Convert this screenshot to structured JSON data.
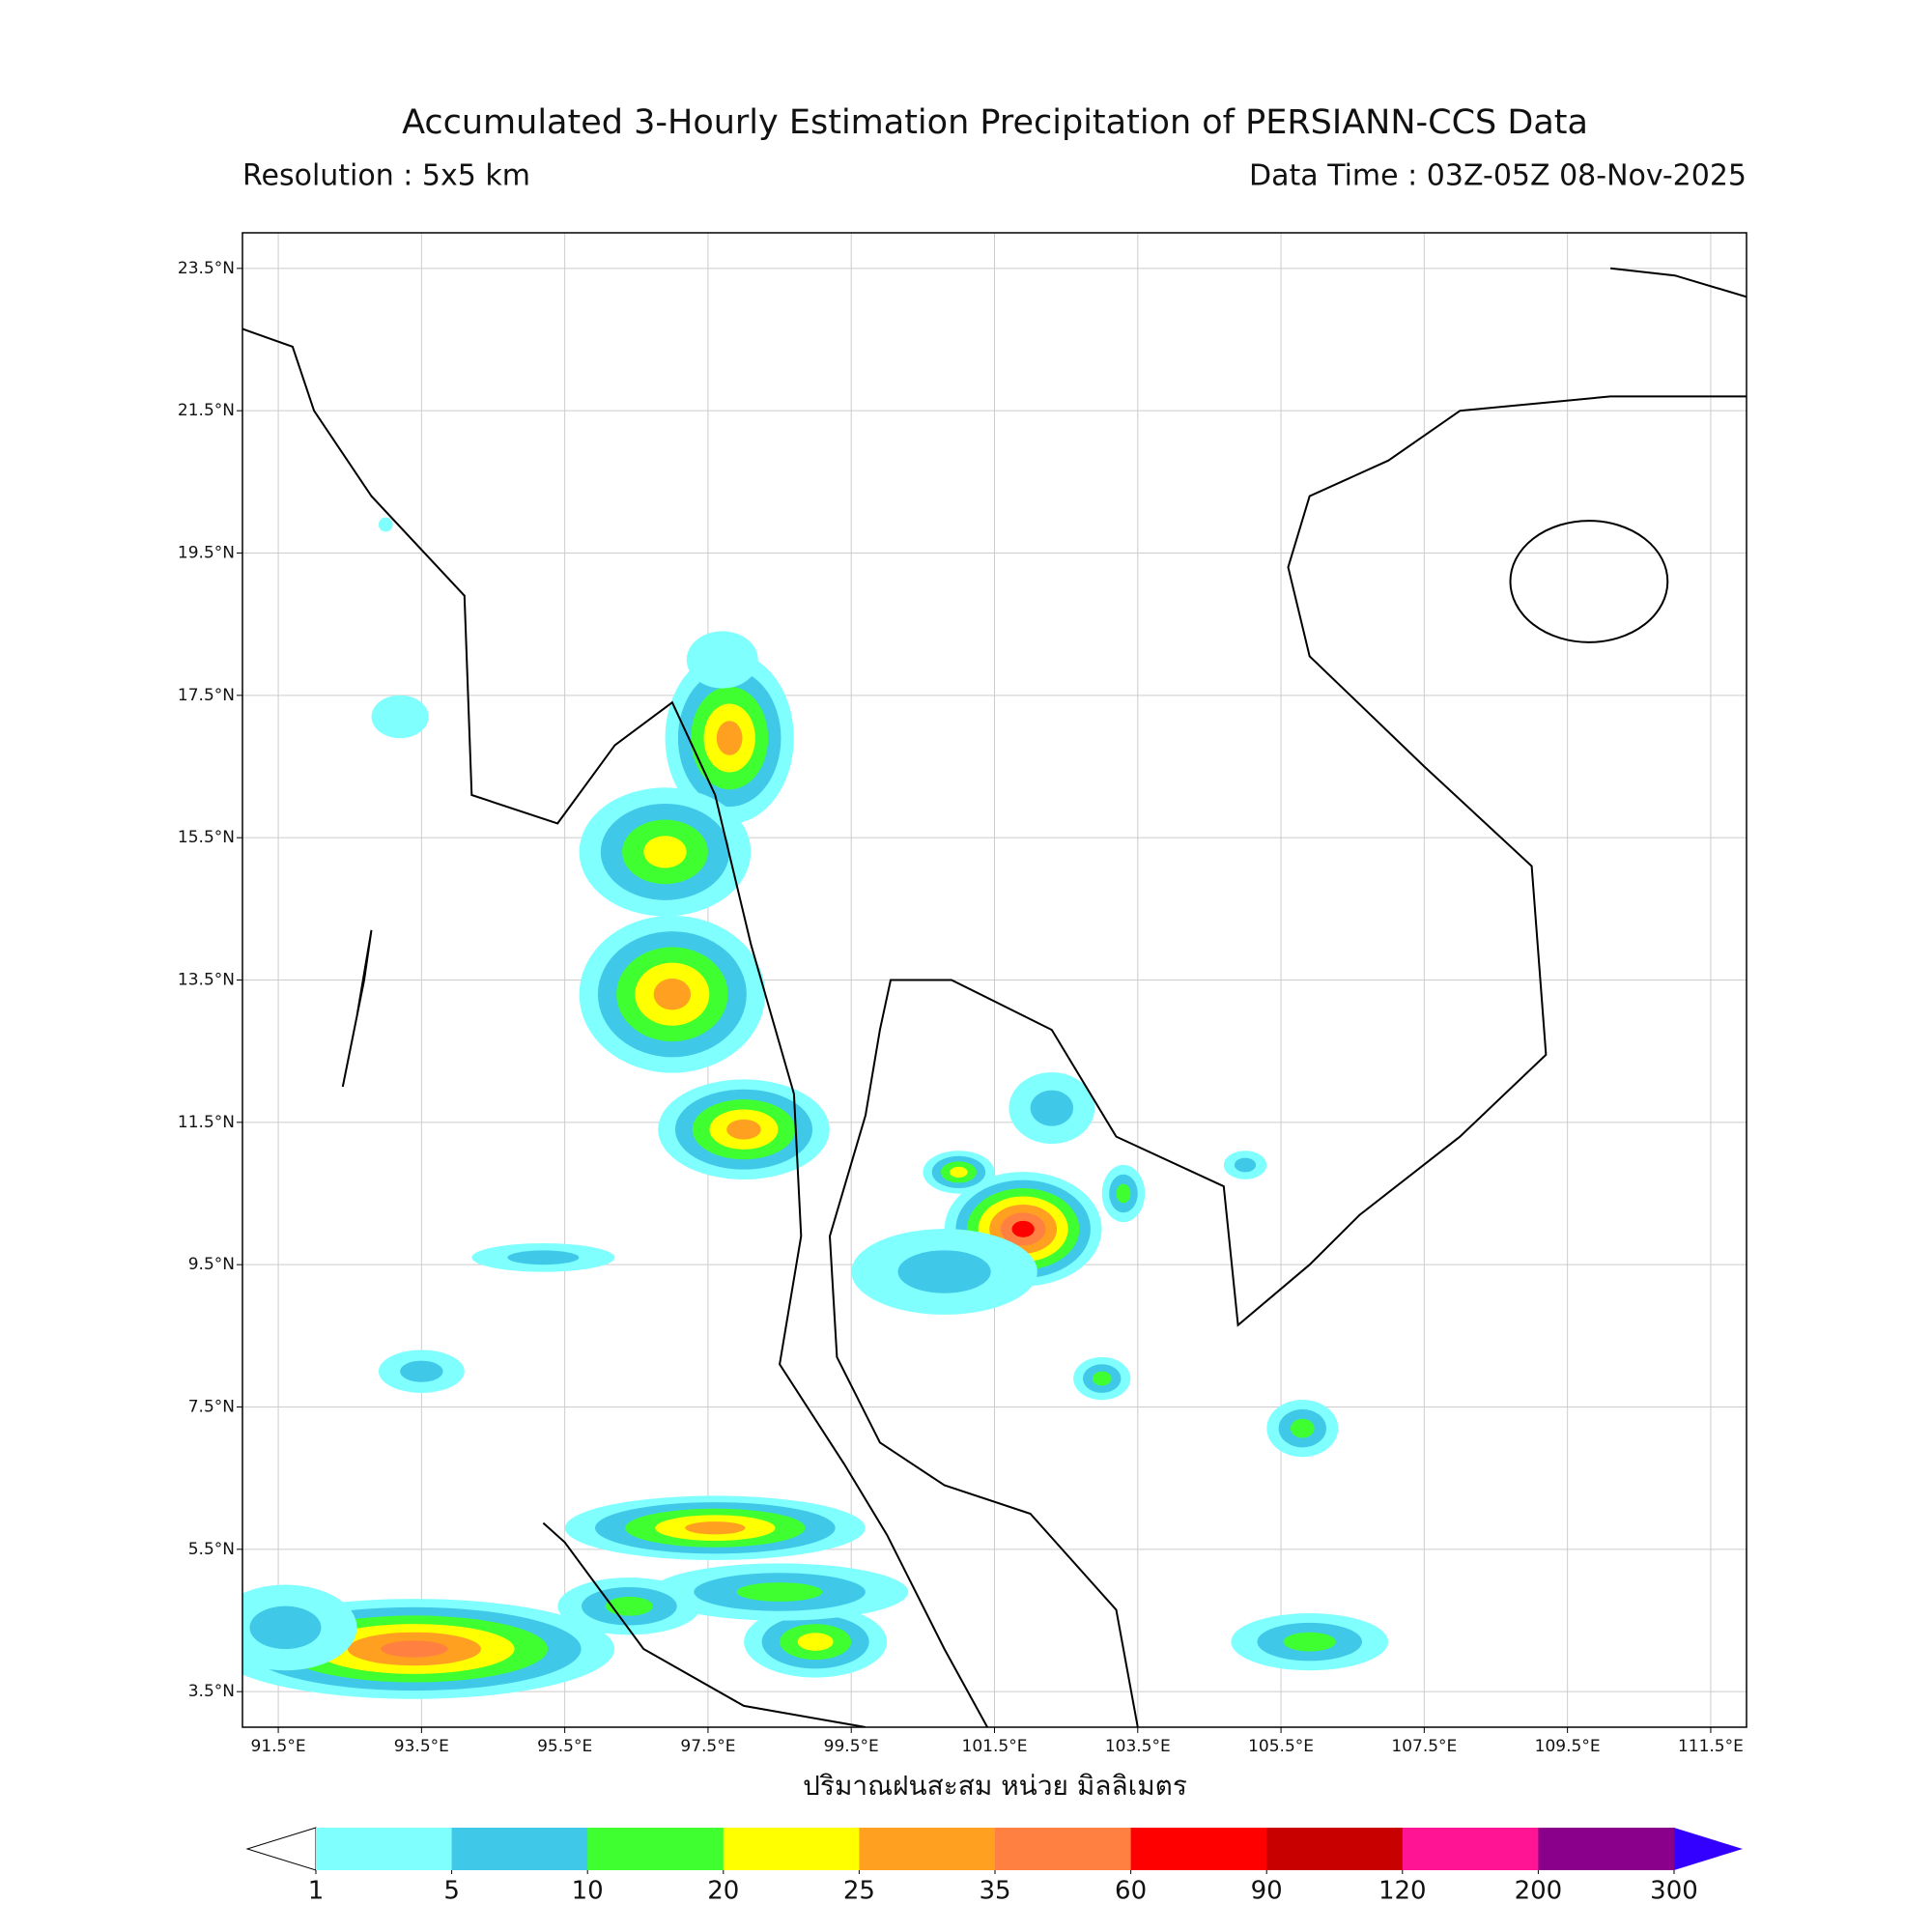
{
  "map": {
    "title": "Accumulated 3-Hourly Estimation Precipitation of PERSIANN-CCS Data",
    "subtitle_left": "Resolution : 5x5 km",
    "subtitle_right": "Data Time : 03Z-05Z 08-Nov-2025",
    "x_label": "ปริมาณฝนสะสม หน่วย มิลลิเมตร",
    "extent": [
      91,
      112,
      3,
      24
    ],
    "lon_ticks": [
      {
        "value": 91.5,
        "label": "91.5°E"
      },
      {
        "value": 93.5,
        "label": "93.5°E"
      },
      {
        "value": 95.5,
        "label": "95.5°E"
      },
      {
        "value": 97.5,
        "label": "97.5°E"
      },
      {
        "value": 99.5,
        "label": "99.5°E"
      },
      {
        "value": 101.5,
        "label": "101.5°E"
      },
      {
        "value": 103.5,
        "label": "103.5°E"
      },
      {
        "value": 105.5,
        "label": "105.5°E"
      },
      {
        "value": 107.5,
        "label": "107.5°E"
      },
      {
        "value": 109.5,
        "label": "109.5°E"
      },
      {
        "value": 111.5,
        "label": "111.5°E"
      }
    ],
    "lat_ticks": [
      {
        "value": 23.5,
        "label": "23.5°N"
      },
      {
        "value": 21.5,
        "label": "21.5°N"
      },
      {
        "value": 19.5,
        "label": "19.5°N"
      },
      {
        "value": 17.5,
        "label": "17.5°N"
      },
      {
        "value": 15.5,
        "label": "15.5°N"
      },
      {
        "value": 13.5,
        "label": "13.5°N"
      },
      {
        "value": 11.5,
        "label": "11.5°N"
      },
      {
        "value": 9.5,
        "label": "9.5°N"
      },
      {
        "value": 7.5,
        "label": "7.5°N"
      },
      {
        "value": 5.5,
        "label": "5.5°N"
      },
      {
        "value": 3.5,
        "label": "3.5°N"
      }
    ],
    "colorbar": {
      "levels": [
        1,
        5,
        10,
        20,
        25,
        35,
        60,
        90,
        120,
        200,
        300
      ],
      "colors": [
        "#80ffff",
        "#40c8e8",
        "#40ff30",
        "#ffff00",
        "#ffa020",
        "#ff8040",
        "#ff0000",
        "#c80000",
        "#ff1493",
        "#8b008b"
      ],
      "under_color": "#ffffff",
      "over_color": "#3300ff"
    }
  }
}
